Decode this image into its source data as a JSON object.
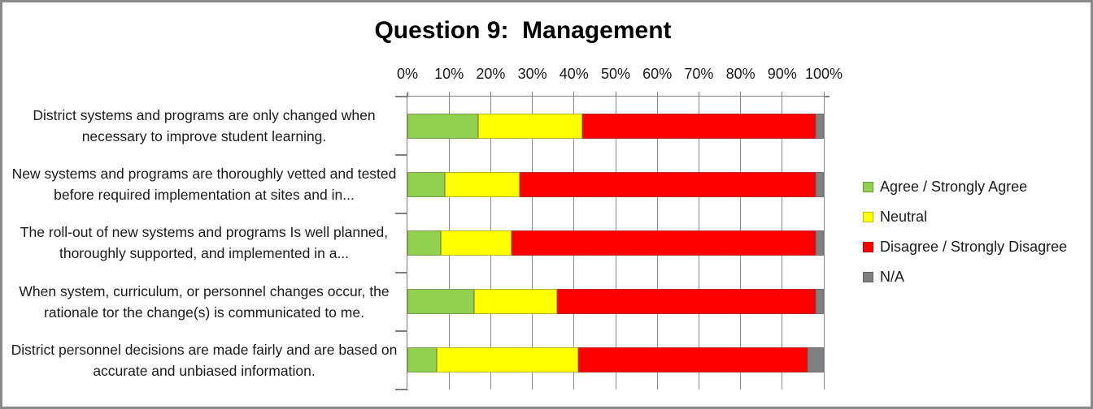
{
  "chart_title": "Question 9:  Management",
  "chart_data": {
    "type": "bar",
    "stacked": true,
    "orientation": "horizontal",
    "title": "Question 9:  Management",
    "categories": [
      "District systems and programs are only changed when necessary to improve student learning.",
      "New systems and programs are thoroughly vetted and tested before required implementation at sites and in...",
      "The roll-out of new systems and programs Is well planned, thoroughly supported, and implemented in a...",
      "When system, curriculum, or personnel changes occur, the rationale tor the change(s) is communicated to me.",
      "District personnel decisions are made fairly and are based on accurate and unbiased information."
    ],
    "series": [
      {
        "name": "Agree / Strongly Agree",
        "color": "#92D050",
        "values": [
          17,
          9,
          8,
          16,
          7
        ]
      },
      {
        "name": "Neutral",
        "color": "#FFFF00",
        "values": [
          25,
          18,
          17,
          20,
          34
        ]
      },
      {
        "name": "Disagree / Strongly Disagree",
        "color": "#FF0000",
        "values": [
          56,
          71,
          73,
          62,
          55
        ]
      },
      {
        "name": "N/A",
        "color": "#808080",
        "values": [
          2,
          2,
          2,
          2,
          4
        ]
      }
    ],
    "x_axis": {
      "position": "top",
      "min": 0,
      "max": 100,
      "tick_labels": [
        "0%",
        "10%",
        "20%",
        "30%",
        "40%",
        "50%",
        "60%",
        "70%",
        "80%",
        "90%",
        "100%"
      ]
    },
    "legend_position": "right",
    "grid": true,
    "colors": {
      "gridline": "#8c8c8c",
      "axis": "#808080",
      "frame_border": "#8a8a8a",
      "text": "#000000",
      "background": "#FFFFFF"
    }
  }
}
